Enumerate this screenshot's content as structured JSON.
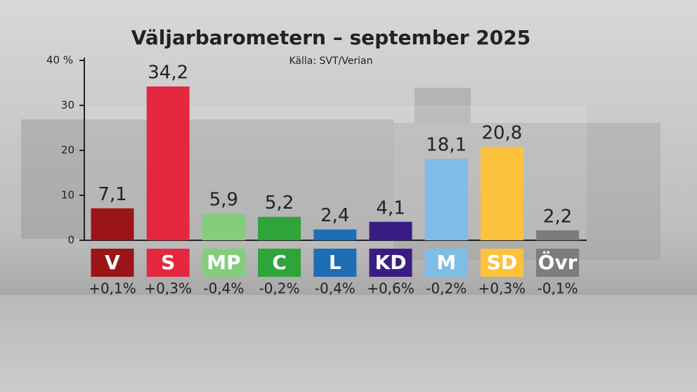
{
  "chart_data": {
    "type": "bar",
    "title": "Väljarbarometern – september 2025",
    "subtitle": "Källa: SVT/Verian",
    "categories": [
      "V",
      "S",
      "MP",
      "C",
      "L",
      "KD",
      "M",
      "SD",
      "Övr"
    ],
    "values": [
      7.1,
      34.2,
      5.9,
      5.2,
      2.4,
      4.1,
      18.1,
      20.8,
      2.2
    ],
    "value_labels": [
      "7,1",
      "34,2",
      "5,9",
      "5,2",
      "2,4",
      "4,1",
      "18,1",
      "20,8",
      "2,2"
    ],
    "colors": [
      "#9b1418",
      "#e3283f",
      "#83cd7d",
      "#2ea43a",
      "#1e6eb5",
      "#3a1d82",
      "#7dbde6",
      "#fcc23c",
      "#7c7c7c"
    ],
    "change_labels": [
      "+0,1%",
      "+0,3%",
      "-0,4%",
      "-0,2%",
      "-0,4%",
      "+0,6%",
      "-0,2%",
      "+0,3%",
      "-0,1%"
    ],
    "ylim": [
      0,
      40
    ],
    "yticks": [
      0,
      10,
      20,
      30,
      {
        "value": 40,
        "label": "40 %"
      }
    ]
  }
}
